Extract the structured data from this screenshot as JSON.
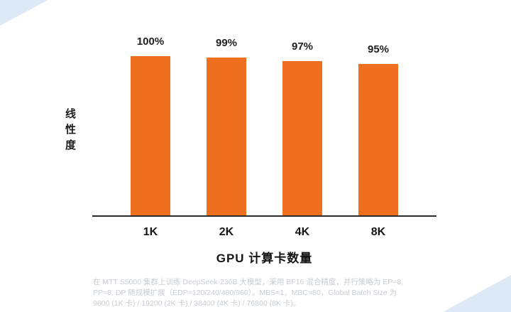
{
  "chart_data": {
    "type": "bar",
    "categories": [
      "1K",
      "2K",
      "4K",
      "8K"
    ],
    "values": [
      100,
      99,
      97,
      95
    ],
    "value_labels": [
      "100%",
      "99%",
      "97%",
      "95%"
    ],
    "title": "",
    "xlabel": "GPU 计算卡数量",
    "ylabel": "线性度",
    "ylim": [
      0,
      100
    ],
    "grid": false,
    "legend": "none",
    "bar_color": "#EE6F1E",
    "axis_color": "#2b2b2b"
  },
  "footnote": {
    "line1": "在 MTT S5000 集群上训练 DeepSeek-236B 大模型，采用 BF16 混合精度，并行策略为 EP=8,",
    "line2": "PP=8, DP 随规模扩展（EDP=120/240/480/960）。MBS=1，MBC=80，Global Batch Size 为",
    "line3": "9600 (1K 卡) / 19200 (2K 卡) / 38400 (4K 卡) / 76800 (8K 卡)。"
  },
  "decor": {
    "corner_color": "#dde9f6"
  }
}
